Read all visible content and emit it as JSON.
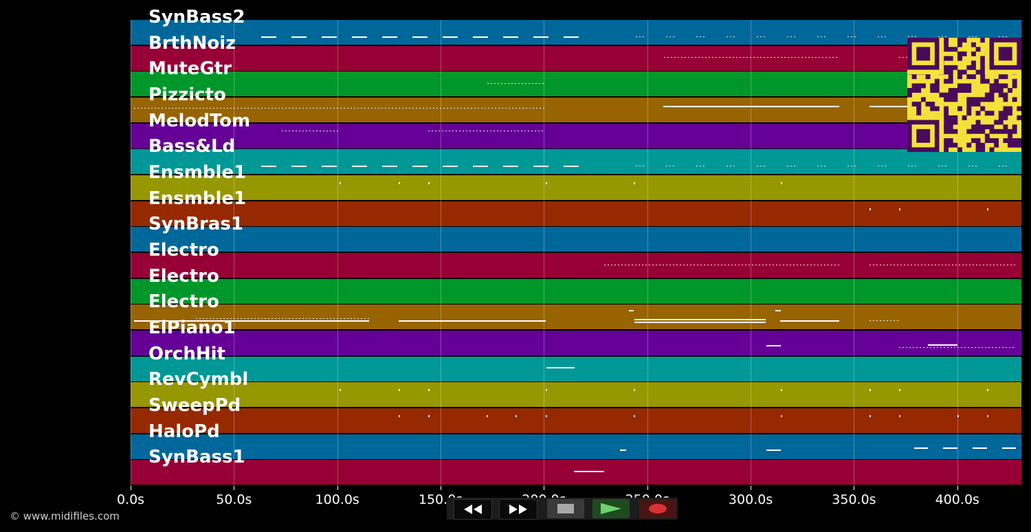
{
  "tracks": [
    {
      "name": "SynBass2",
      "color": "#00679a"
    },
    {
      "name": "BrthNoiz",
      "color": "#970034"
    },
    {
      "name": "MuteGtr",
      "color": "#00972a"
    },
    {
      "name": "Pizzicto",
      "color": "#976400"
    },
    {
      "name": "MelodTom",
      "color": "#650097"
    },
    {
      "name": "Bass&Ld",
      "color": "#009797"
    },
    {
      "name": "Ensmble1",
      "color": "#979700"
    },
    {
      "name": "Ensmble1",
      "color": "#972900"
    },
    {
      "name": "SynBras1",
      "color": "#00679a"
    },
    {
      "name": "Electro",
      "color": "#970034"
    },
    {
      "name": "Electro",
      "color": "#00972a"
    },
    {
      "name": "Electro",
      "color": "#976400"
    },
    {
      "name": "ElPiano1",
      "color": "#650097"
    },
    {
      "name": "OrchHit",
      "color": "#009797"
    },
    {
      "name": "RevCymbl",
      "color": "#979700"
    },
    {
      "name": "SweepPd",
      "color": "#972900"
    },
    {
      "name": "HaloPd",
      "color": "#00679a"
    },
    {
      "name": "SynBass1",
      "color": "#970034"
    }
  ],
  "time_axis": {
    "ticks": [
      "0.0s",
      "50.0s",
      "100.0s",
      "150.0s",
      "200.0s",
      "250.0s",
      "300.0s",
      "350.0s",
      "400.0s"
    ],
    "max_seconds": 431
  },
  "copyright": "© www.midifiles.com",
  "controls": [
    {
      "name": "rewind",
      "icon": "rewind-icon"
    },
    {
      "name": "fast-forward",
      "icon": "fast-forward-icon"
    },
    {
      "name": "stop",
      "icon": "stop-icon"
    },
    {
      "name": "play",
      "icon": "play-icon"
    },
    {
      "name": "record",
      "icon": "record-icon"
    }
  ],
  "qr_code": {
    "icon": "qr-code-icon",
    "fg": "#4a0a5a",
    "bg": "#f3e23a"
  }
}
